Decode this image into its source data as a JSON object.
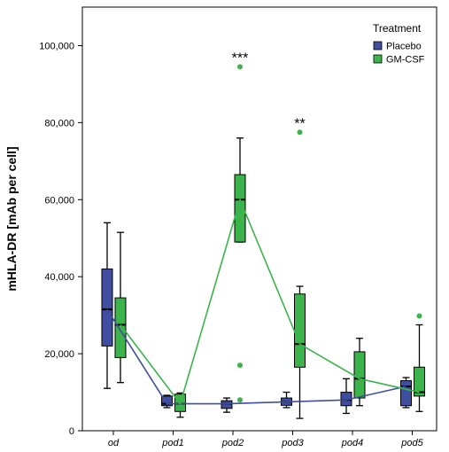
{
  "chart_data": {
    "type": "box",
    "ylabel": "mHLA-DR [mAb per cell]",
    "ylim": [
      0,
      110000
    ],
    "yticks": [
      0,
      20000,
      40000,
      60000,
      80000,
      100000
    ],
    "ytick_labels": [
      "0",
      "20,000",
      "40,000",
      "60,000",
      "80,000",
      "100,000"
    ],
    "categories": [
      "od",
      "pod1",
      "pod2",
      "pod3",
      "pod4",
      "pod5"
    ],
    "legend": {
      "title": "Treatment",
      "position": "top-right"
    },
    "series": [
      {
        "name": "Placebo",
        "color": "#3F4EA0",
        "boxes": [
          {
            "min": 11000,
            "q1": 22000,
            "median": 31500,
            "q3": 42000,
            "max": 54000,
            "outliers": []
          },
          {
            "min": 6000,
            "q1": 6500,
            "median": 7000,
            "q3": 9000,
            "max": 9200,
            "outliers": []
          },
          {
            "min": 4800,
            "q1": 5800,
            "median": 7000,
            "q3": 7800,
            "max": 8500,
            "outliers": []
          },
          {
            "min": 6000,
            "q1": 6600,
            "median": 7500,
            "q3": 8500,
            "max": 10000,
            "outliers": []
          },
          {
            "min": 4500,
            "q1": 6500,
            "median": 8000,
            "q3": 10000,
            "max": 13500,
            "outliers": []
          },
          {
            "min": 6000,
            "q1": 6500,
            "median": 11500,
            "q3": 13000,
            "max": 13800,
            "outliers": []
          }
        ]
      },
      {
        "name": "GM-CSF",
        "color": "#3CB44B",
        "boxes": [
          {
            "min": 12500,
            "q1": 19000,
            "median": 27500,
            "q3": 34500,
            "max": 51500,
            "outliers": []
          },
          {
            "min": 3500,
            "q1": 5000,
            "median": 7000,
            "q3": 9500,
            "max": 9800,
            "outliers": []
          },
          {
            "min": 49000,
            "q1": 49000,
            "median": 60000,
            "q3": 66500,
            "max": 76000,
            "outliers": [
              94500,
              17000,
              8000
            ]
          },
          {
            "min": 3200,
            "q1": 16500,
            "median": 22500,
            "q3": 35500,
            "max": 37500,
            "outliers": [
              77500
            ]
          },
          {
            "min": 6500,
            "q1": 8500,
            "median": 13500,
            "q3": 20500,
            "max": 24000,
            "outliers": []
          },
          {
            "min": 5000,
            "q1": 9000,
            "median": 10000,
            "q3": 16500,
            "max": 27500,
            "outliers": [
              29800
            ]
          }
        ]
      }
    ],
    "annotations": [
      {
        "text": "***",
        "category": "pod2",
        "y": 97000
      },
      {
        "text": "**",
        "category": "pod3",
        "y": 80000
      }
    ]
  }
}
